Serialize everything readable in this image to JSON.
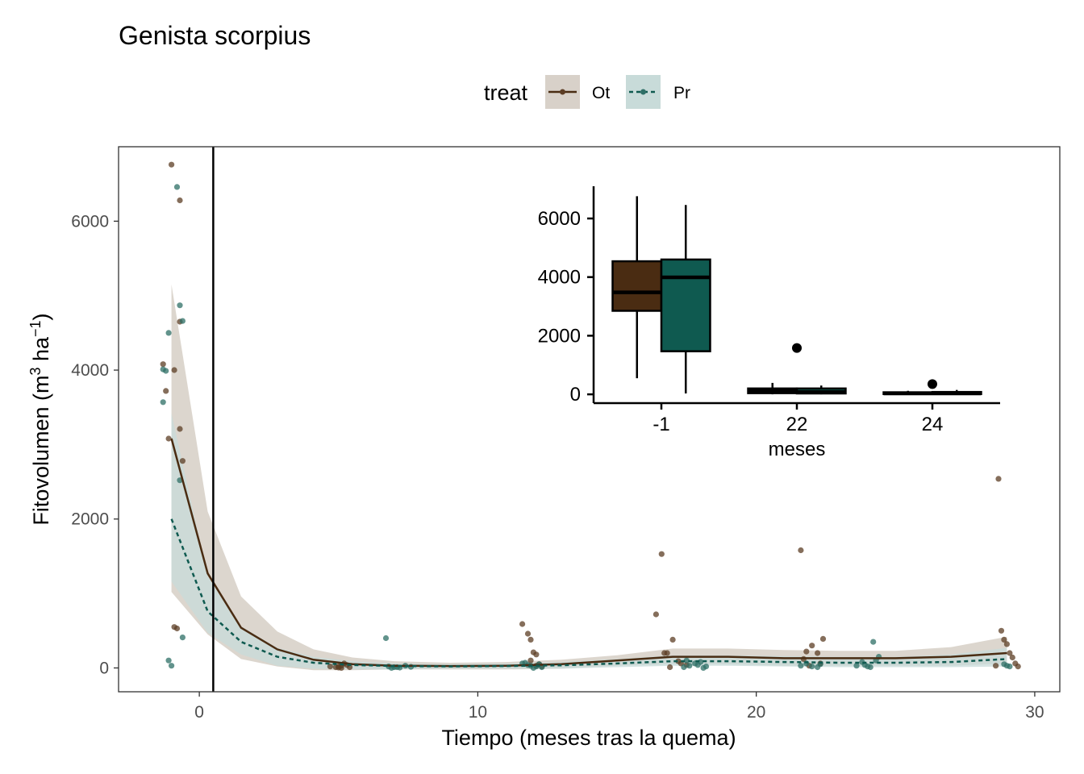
{
  "chart_data": [
    {
      "type": "scatter",
      "title": "Genista scorpius",
      "xlabel": "Tiempo (meses tras la quema)",
      "ylabel_base": "Fitovolumen (m",
      "ylabel_sup1": "3",
      "ylabel_mid": " ha",
      "ylabel_sup2": "−1",
      "ylabel_end": ")",
      "xlim": [
        -2.9,
        30.9
      ],
      "ylim": [
        -320,
        7000
      ],
      "x_ticks": [
        0,
        10,
        20,
        30
      ],
      "y_ticks": [
        0,
        2000,
        4000,
        6000
      ],
      "x_tick_labels": [
        "0",
        "10",
        "20",
        "30"
      ],
      "y_tick_labels": [
        "0",
        "2000",
        "4000",
        "6000"
      ],
      "vline_x": 0.5,
      "grid": false,
      "legend": {
        "title": "treat",
        "position": "top",
        "entries": [
          "Ot",
          "Pr"
        ]
      },
      "colors": {
        "Ot": "#4a2c12",
        "Pr": "#0f5a50",
        "Ot_points": "#5c3d24",
        "Pr_points": "#2e6f66",
        "Ot_band": "#d8d1c9",
        "Pr_band": "#c8dbd9"
      },
      "series": [
        {
          "name": "Ot",
          "line": {
            "x": [
              -1,
              0.3,
              1.5,
              2.8,
              4.1,
              5.5,
              7,
              9,
              11,
              13,
              15,
              17,
              19,
              21,
              23,
              25,
              27,
              29
            ],
            "y": [
              3080,
              1270,
              540,
              250,
              110,
              50,
              30,
              25,
              30,
              50,
              100,
              150,
              150,
              130,
              130,
              130,
              150,
              200
            ]
          },
          "band": {
            "upper": [
              5150,
              2100,
              960,
              490,
              250,
              140,
              90,
              70,
              80,
              110,
              170,
              260,
              260,
              240,
              230,
              230,
              280,
              420
            ],
            "lower": [
              1020,
              450,
              120,
              20,
              -30,
              -30,
              -20,
              -20,
              -20,
              -10,
              30,
              50,
              50,
              30,
              30,
              30,
              30,
              60
            ]
          },
          "points": {
            "x": [
              -1.3,
              -1.2,
              -1.1,
              -1.0,
              -0.9,
              -0.8,
              -0.7,
              -0.7,
              -0.6,
              -0.7,
              -0.9,
              4.7,
              4.9,
              5.0,
              5.1,
              5.2,
              5.3,
              5.4,
              5.1,
              5.0,
              11.6,
              11.8,
              11.9,
              12.0,
              12.1,
              12.2,
              12.3,
              11.9,
              12.1,
              16.4,
              16.6,
              16.8,
              17.0,
              17.2,
              16.7,
              17.3,
              17.5,
              16.9,
              21.6,
              21.8,
              22.0,
              22.2,
              22.4,
              21.7,
              22.3,
              21.9,
              28.7,
              28.8,
              28.9,
              29.0,
              29.1,
              29.2,
              29.3,
              29.4,
              28.6
            ],
            "y": [
              4080,
              3720,
              3080,
              6760,
              550,
              530,
              6280,
              3210,
              2780,
              4650,
              4000,
              20,
              10,
              5,
              30,
              60,
              40,
              10,
              0,
              20,
              590,
              460,
              380,
              210,
              180,
              50,
              20,
              100,
              30,
              720,
              1530,
              200,
              380,
              90,
              200,
              60,
              40,
              10,
              1580,
              220,
              300,
              200,
              390,
              120,
              60,
              30,
              2540,
              500,
              380,
              320,
              200,
              140,
              60,
              20,
              30
            ]
          }
        },
        {
          "name": "Pr",
          "line": {
            "x": [
              -1,
              0.3,
              1.5,
              2.8,
              4.1,
              5.5,
              7,
              9,
              11,
              13,
              15,
              17,
              19,
              21,
              23,
              25,
              27,
              29
            ],
            "y": [
              2000,
              760,
              350,
              150,
              70,
              40,
              25,
              20,
              25,
              35,
              60,
              90,
              90,
              80,
              70,
              70,
              80,
              120
            ]
          },
          "band": {
            "upper": [
              3420,
              1230,
              560,
              270,
              150,
              90,
              60,
              50,
              60,
              80,
              120,
              170,
              170,
              160,
              150,
              150,
              180,
              270
            ],
            "lower": [
              1160,
              470,
              180,
              30,
              -10,
              -20,
              -20,
              -10,
              -10,
              -10,
              10,
              30,
              30,
              20,
              10,
              10,
              10,
              20
            ]
          },
          "points": {
            "x": [
              -1.3,
              -1.2,
              -1.1,
              -1.0,
              -0.8,
              -0.7,
              -0.6,
              -0.6,
              -0.7,
              -1.1,
              -1.3,
              6.7,
              6.8,
              7.0,
              7.2,
              7.4,
              7.6,
              6.9,
              7.1,
              11.6,
              11.8,
              11.9,
              12.1,
              12.3,
              12.0,
              12.2,
              11.7,
              17.4,
              17.6,
              17.8,
              18.0,
              18.2,
              17.5,
              17.9,
              18.1,
              21.6,
              21.8,
              22.0,
              22.2,
              22.3,
              23.6,
              23.8,
              24.0,
              24.2,
              24.4,
              24.1,
              23.9,
              24.3,
              28.9,
              29.0,
              29.1
            ],
            "y": [
              3570,
              3990,
              4500,
              30,
              6460,
              4870,
              4660,
              410,
              2520,
              100,
              4010,
              400,
              20,
              10,
              5,
              30,
              15,
              0,
              10,
              60,
              40,
              30,
              20,
              10,
              0,
              50,
              70,
              10,
              30,
              60,
              80,
              20,
              100,
              40,
              0,
              30,
              60,
              20,
              10,
              50,
              30,
              80,
              20,
              350,
              150,
              10,
              40,
              100,
              50,
              30,
              20
            ]
          }
        }
      ]
    },
    {
      "type": "box",
      "xlabel": "meses",
      "categories": [
        "-1",
        "22",
        "24"
      ],
      "y_ticks": [
        0,
        2000,
        4000,
        6000
      ],
      "y_tick_labels": [
        "0",
        "2000",
        "4000",
        "6000"
      ],
      "ylim": [
        -300,
        7100
      ],
      "series": [
        {
          "name": "Ot",
          "color": "#4a2c12",
          "boxes": [
            {
              "category": "-1",
              "min": 550,
              "q1": 2850,
              "median": 3480,
              "q3": 4540,
              "max": 6760,
              "outliers": []
            },
            {
              "category": "22",
              "min": 0,
              "q1": 40,
              "median": 110,
              "q3": 200,
              "max": 390,
              "outliers": [
                1580
              ]
            },
            {
              "category": "24",
              "min": 0,
              "q1": 10,
              "median": 30,
              "q3": 70,
              "max": 120,
              "outliers": [
                350
              ]
            }
          ]
        },
        {
          "name": "Pr",
          "color": "#0f5a50",
          "boxes": [
            {
              "category": "-1",
              "min": 30,
              "q1": 1470,
              "median": 3990,
              "q3": 4600,
              "max": 6460,
              "outliers": []
            },
            {
              "category": "22",
              "min": 0,
              "q1": 30,
              "median": 80,
              "q3": 200,
              "max": 300,
              "outliers": []
            },
            {
              "category": "24",
              "min": 0,
              "q1": 10,
              "median": 30,
              "q3": 80,
              "max": 150,
              "outliers": []
            }
          ]
        }
      ]
    }
  ]
}
